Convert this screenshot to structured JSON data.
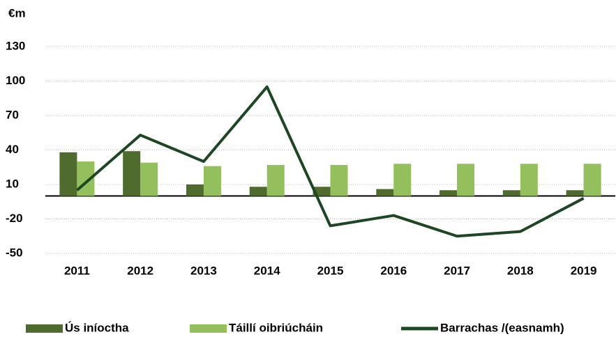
{
  "chart_data": {
    "type": "bar",
    "y_label": "€m",
    "categories": [
      "2011",
      "2012",
      "2013",
      "2014",
      "2015",
      "2016",
      "2017",
      "2018",
      "2019"
    ],
    "series": [
      {
        "name": "Ús iníoctha",
        "type": "bar",
        "color": "#4f6b2d",
        "values": [
          38,
          39,
          10,
          8,
          8,
          6,
          5,
          5,
          5
        ]
      },
      {
        "name": "Táillí oibriúcháin",
        "type": "bar",
        "color": "#93bf5c",
        "values": [
          30,
          29,
          26,
          27,
          27,
          28,
          28,
          28,
          28
        ]
      },
      {
        "name": "Barrachas /(easnamh)",
        "type": "line",
        "color": "#1d4722",
        "values": [
          5,
          53,
          30,
          95,
          -26,
          -17,
          -35,
          -31,
          -2
        ]
      }
    ],
    "ylim": [
      -50,
      130
    ],
    "yticks": [
      -50,
      -20,
      10,
      40,
      70,
      100,
      130
    ],
    "grid": true
  }
}
